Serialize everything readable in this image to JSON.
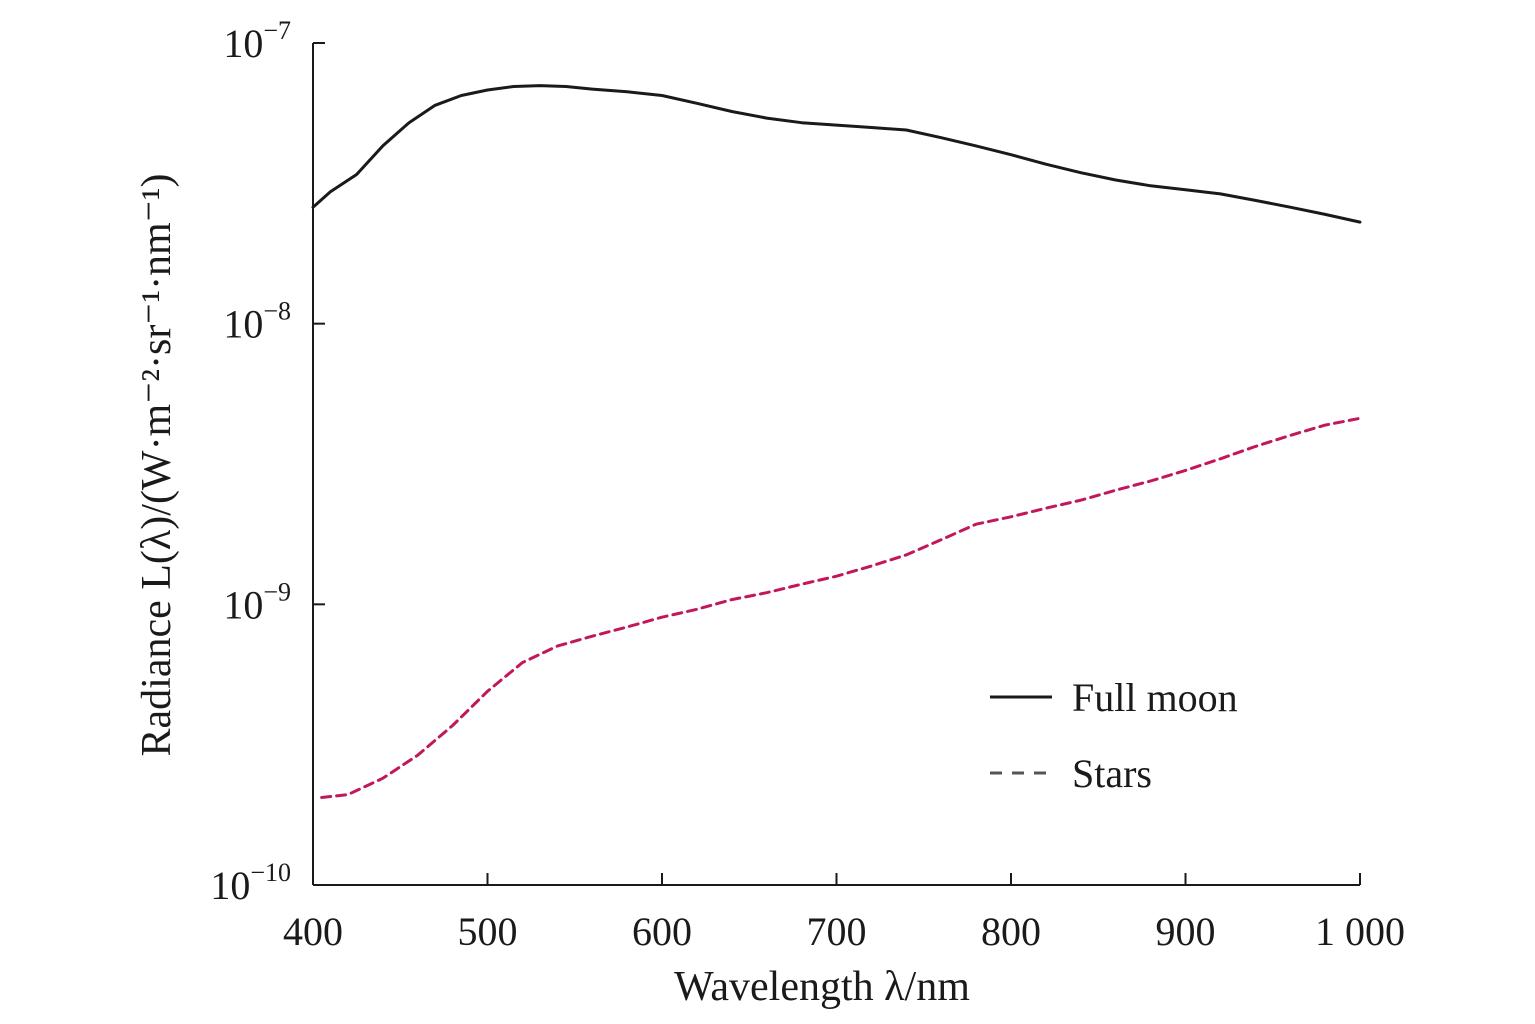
{
  "chart_data": {
    "type": "line",
    "xlabel": "Wavelength λ/nm",
    "ylabel": "Radiance L(λ)/(W·m⁻²·sr⁻¹·nm⁻¹)",
    "x_ticks": [
      "400",
      "500",
      "600",
      "700",
      "800",
      "900",
      "1 000"
    ],
    "x_tick_values": [
      400,
      500,
      600,
      700,
      800,
      900,
      1000
    ],
    "y_ticks": [
      {
        "value": 1e-10,
        "base": "10",
        "exp": "−10"
      },
      {
        "value": 1e-09,
        "base": "10",
        "exp": "−9"
      },
      {
        "value": 1e-08,
        "base": "10",
        "exp": "−8"
      },
      {
        "value": 1e-07,
        "base": "10",
        "exp": "−7"
      }
    ],
    "xlim": [
      400,
      1000
    ],
    "ylim": [
      1e-10,
      1e-07
    ],
    "yscale": "log",
    "grid": false,
    "legend_position": "lower-right",
    "series": [
      {
        "name": "Full moon",
        "style": "solid",
        "color": "#1a1a1a",
        "x": [
          400,
          410,
          425,
          440,
          455,
          470,
          485,
          500,
          515,
          530,
          545,
          560,
          580,
          600,
          620,
          640,
          660,
          680,
          700,
          720,
          740,
          760,
          780,
          800,
          820,
          840,
          860,
          880,
          900,
          920,
          940,
          960,
          980,
          1000
        ],
        "y": [
          2.6e-08,
          2.95e-08,
          3.4e-08,
          4.3e-08,
          5.2e-08,
          6e-08,
          6.5e-08,
          6.8e-08,
          7e-08,
          7.05e-08,
          7e-08,
          6.85e-08,
          6.7e-08,
          6.5e-08,
          6.1e-08,
          5.7e-08,
          5.4e-08,
          5.2e-08,
          5.1e-08,
          5e-08,
          4.9e-08,
          4.6e-08,
          4.3e-08,
          4e-08,
          3.7e-08,
          3.45e-08,
          3.25e-08,
          3.1e-08,
          3e-08,
          2.9e-08,
          2.75e-08,
          2.6e-08,
          2.45e-08,
          2.3e-08
        ]
      },
      {
        "name": "Stars",
        "style": "dashed",
        "color": "#c2185b",
        "x": [
          405,
          420,
          440,
          460,
          480,
          500,
          520,
          540,
          560,
          580,
          600,
          620,
          640,
          660,
          680,
          700,
          720,
          740,
          760,
          780,
          800,
          820,
          840,
          860,
          880,
          900,
          920,
          940,
          960,
          980,
          1000
        ],
        "y": [
          2.05e-10,
          2.1e-10,
          2.4e-10,
          2.9e-10,
          3.7e-10,
          4.9e-10,
          6.2e-10,
          7.1e-10,
          7.7e-10,
          8.3e-10,
          9e-10,
          9.6e-10,
          1.04e-09,
          1.1e-09,
          1.18e-09,
          1.26e-09,
          1.37e-09,
          1.5e-09,
          1.7e-09,
          1.93e-09,
          2.05e-09,
          2.2e-09,
          2.35e-09,
          2.55e-09,
          2.75e-09,
          3e-09,
          3.3e-09,
          3.65e-09,
          4e-09,
          4.35e-09,
          4.6e-09
        ]
      }
    ]
  }
}
